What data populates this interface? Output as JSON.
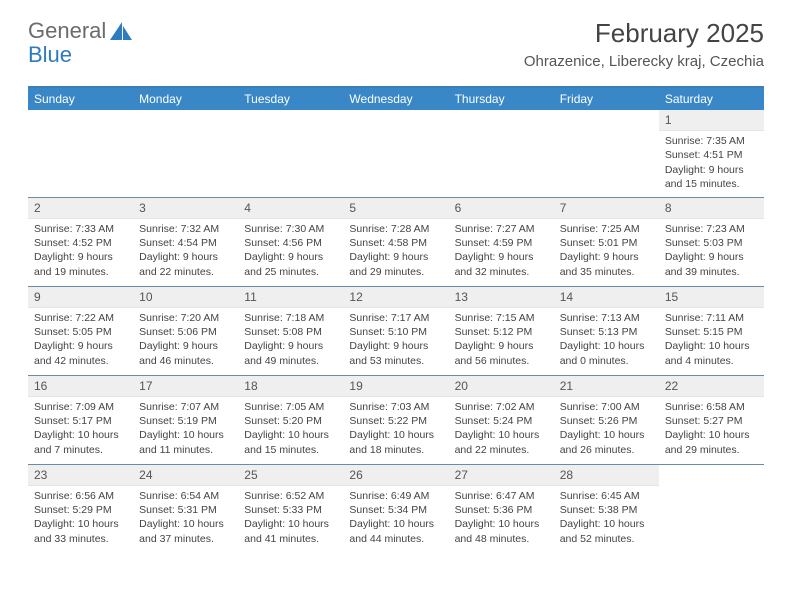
{
  "logo": {
    "word1": "General",
    "word2": "Blue"
  },
  "title": "February 2025",
  "location": "Ohrazenice, Liberecky kraj, Czechia",
  "colors": {
    "header_bg": "#3a87c7",
    "header_border": "#3a7fb5",
    "row_divider": "#6a8ba8",
    "daynum_bg": "#efefef",
    "text": "#444444",
    "logo_gray": "#6b6b6b",
    "logo_blue": "#2f7bbf"
  },
  "day_labels": [
    "Sunday",
    "Monday",
    "Tuesday",
    "Wednesday",
    "Thursday",
    "Friday",
    "Saturday"
  ],
  "weeks": [
    [
      null,
      null,
      null,
      null,
      null,
      null,
      {
        "n": "1",
        "sr": "Sunrise: 7:35 AM",
        "ss": "Sunset: 4:51 PM",
        "d1": "Daylight: 9 hours",
        "d2": "and 15 minutes."
      }
    ],
    [
      {
        "n": "2",
        "sr": "Sunrise: 7:33 AM",
        "ss": "Sunset: 4:52 PM",
        "d1": "Daylight: 9 hours",
        "d2": "and 19 minutes."
      },
      {
        "n": "3",
        "sr": "Sunrise: 7:32 AM",
        "ss": "Sunset: 4:54 PM",
        "d1": "Daylight: 9 hours",
        "d2": "and 22 minutes."
      },
      {
        "n": "4",
        "sr": "Sunrise: 7:30 AM",
        "ss": "Sunset: 4:56 PM",
        "d1": "Daylight: 9 hours",
        "d2": "and 25 minutes."
      },
      {
        "n": "5",
        "sr": "Sunrise: 7:28 AM",
        "ss": "Sunset: 4:58 PM",
        "d1": "Daylight: 9 hours",
        "d2": "and 29 minutes."
      },
      {
        "n": "6",
        "sr": "Sunrise: 7:27 AM",
        "ss": "Sunset: 4:59 PM",
        "d1": "Daylight: 9 hours",
        "d2": "and 32 minutes."
      },
      {
        "n": "7",
        "sr": "Sunrise: 7:25 AM",
        "ss": "Sunset: 5:01 PM",
        "d1": "Daylight: 9 hours",
        "d2": "and 35 minutes."
      },
      {
        "n": "8",
        "sr": "Sunrise: 7:23 AM",
        "ss": "Sunset: 5:03 PM",
        "d1": "Daylight: 9 hours",
        "d2": "and 39 minutes."
      }
    ],
    [
      {
        "n": "9",
        "sr": "Sunrise: 7:22 AM",
        "ss": "Sunset: 5:05 PM",
        "d1": "Daylight: 9 hours",
        "d2": "and 42 minutes."
      },
      {
        "n": "10",
        "sr": "Sunrise: 7:20 AM",
        "ss": "Sunset: 5:06 PM",
        "d1": "Daylight: 9 hours",
        "d2": "and 46 minutes."
      },
      {
        "n": "11",
        "sr": "Sunrise: 7:18 AM",
        "ss": "Sunset: 5:08 PM",
        "d1": "Daylight: 9 hours",
        "d2": "and 49 minutes."
      },
      {
        "n": "12",
        "sr": "Sunrise: 7:17 AM",
        "ss": "Sunset: 5:10 PM",
        "d1": "Daylight: 9 hours",
        "d2": "and 53 minutes."
      },
      {
        "n": "13",
        "sr": "Sunrise: 7:15 AM",
        "ss": "Sunset: 5:12 PM",
        "d1": "Daylight: 9 hours",
        "d2": "and 56 minutes."
      },
      {
        "n": "14",
        "sr": "Sunrise: 7:13 AM",
        "ss": "Sunset: 5:13 PM",
        "d1": "Daylight: 10 hours",
        "d2": "and 0 minutes."
      },
      {
        "n": "15",
        "sr": "Sunrise: 7:11 AM",
        "ss": "Sunset: 5:15 PM",
        "d1": "Daylight: 10 hours",
        "d2": "and 4 minutes."
      }
    ],
    [
      {
        "n": "16",
        "sr": "Sunrise: 7:09 AM",
        "ss": "Sunset: 5:17 PM",
        "d1": "Daylight: 10 hours",
        "d2": "and 7 minutes."
      },
      {
        "n": "17",
        "sr": "Sunrise: 7:07 AM",
        "ss": "Sunset: 5:19 PM",
        "d1": "Daylight: 10 hours",
        "d2": "and 11 minutes."
      },
      {
        "n": "18",
        "sr": "Sunrise: 7:05 AM",
        "ss": "Sunset: 5:20 PM",
        "d1": "Daylight: 10 hours",
        "d2": "and 15 minutes."
      },
      {
        "n": "19",
        "sr": "Sunrise: 7:03 AM",
        "ss": "Sunset: 5:22 PM",
        "d1": "Daylight: 10 hours",
        "d2": "and 18 minutes."
      },
      {
        "n": "20",
        "sr": "Sunrise: 7:02 AM",
        "ss": "Sunset: 5:24 PM",
        "d1": "Daylight: 10 hours",
        "d2": "and 22 minutes."
      },
      {
        "n": "21",
        "sr": "Sunrise: 7:00 AM",
        "ss": "Sunset: 5:26 PM",
        "d1": "Daylight: 10 hours",
        "d2": "and 26 minutes."
      },
      {
        "n": "22",
        "sr": "Sunrise: 6:58 AM",
        "ss": "Sunset: 5:27 PM",
        "d1": "Daylight: 10 hours",
        "d2": "and 29 minutes."
      }
    ],
    [
      {
        "n": "23",
        "sr": "Sunrise: 6:56 AM",
        "ss": "Sunset: 5:29 PM",
        "d1": "Daylight: 10 hours",
        "d2": "and 33 minutes."
      },
      {
        "n": "24",
        "sr": "Sunrise: 6:54 AM",
        "ss": "Sunset: 5:31 PM",
        "d1": "Daylight: 10 hours",
        "d2": "and 37 minutes."
      },
      {
        "n": "25",
        "sr": "Sunrise: 6:52 AM",
        "ss": "Sunset: 5:33 PM",
        "d1": "Daylight: 10 hours",
        "d2": "and 41 minutes."
      },
      {
        "n": "26",
        "sr": "Sunrise: 6:49 AM",
        "ss": "Sunset: 5:34 PM",
        "d1": "Daylight: 10 hours",
        "d2": "and 44 minutes."
      },
      {
        "n": "27",
        "sr": "Sunrise: 6:47 AM",
        "ss": "Sunset: 5:36 PM",
        "d1": "Daylight: 10 hours",
        "d2": "and 48 minutes."
      },
      {
        "n": "28",
        "sr": "Sunrise: 6:45 AM",
        "ss": "Sunset: 5:38 PM",
        "d1": "Daylight: 10 hours",
        "d2": "and 52 minutes."
      },
      null
    ]
  ]
}
